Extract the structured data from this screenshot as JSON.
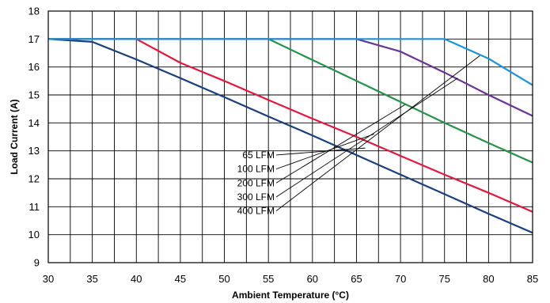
{
  "chart_data": {
    "type": "line",
    "title": "",
    "xlabel": "Ambient Temperature (°C)",
    "ylabel": "Load Current (A)",
    "xlim": [
      30,
      85
    ],
    "ylim": [
      9,
      18
    ],
    "xticks": [
      30,
      35,
      40,
      45,
      50,
      55,
      60,
      65,
      70,
      75,
      80,
      85
    ],
    "yticks": [
      9,
      10,
      11,
      12,
      13,
      14,
      15,
      16,
      17,
      18
    ],
    "grid": true,
    "legend": "none",
    "series": [
      {
        "name": "65 LFM",
        "color": "#1b3f7a",
        "points": [
          [
            30,
            17.0
          ],
          [
            35,
            16.9
          ],
          [
            40,
            16.27
          ],
          [
            45,
            15.6
          ],
          [
            50,
            14.92
          ],
          [
            55,
            14.23
          ],
          [
            60,
            13.55
          ],
          [
            65,
            12.85
          ],
          [
            70,
            12.15
          ],
          [
            75,
            11.45
          ],
          [
            80,
            10.75
          ],
          [
            85,
            10.07
          ]
        ]
      },
      {
        "name": "100 LFM",
        "color": "#e0193f",
        "points": [
          [
            30,
            17.0
          ],
          [
            40,
            17.0
          ],
          [
            45,
            16.15
          ],
          [
            50,
            15.5
          ],
          [
            55,
            14.82
          ],
          [
            60,
            14.15
          ],
          [
            65,
            13.5
          ],
          [
            70,
            12.82
          ],
          [
            75,
            12.15
          ],
          [
            80,
            11.5
          ],
          [
            85,
            10.82
          ]
        ]
      },
      {
        "name": "200 LFM",
        "color": "#26924a",
        "points": [
          [
            30,
            17.0
          ],
          [
            55,
            17.0
          ],
          [
            60,
            16.25
          ],
          [
            65,
            15.5
          ],
          [
            70,
            14.75
          ],
          [
            75,
            14.0
          ],
          [
            80,
            13.28
          ],
          [
            85,
            12.58
          ]
        ]
      },
      {
        "name": "300 LFM",
        "color": "#6a3594",
        "points": [
          [
            30,
            17.0
          ],
          [
            65,
            17.0
          ],
          [
            70,
            16.55
          ],
          [
            75,
            15.8
          ],
          [
            80,
            15.0
          ],
          [
            85,
            14.25
          ]
        ]
      },
      {
        "name": "400 LFM",
        "color": "#1d94d4",
        "points": [
          [
            30,
            17.0
          ],
          [
            75,
            17.0
          ],
          [
            80,
            16.3
          ],
          [
            85,
            15.35
          ]
        ]
      }
    ],
    "annotations": [
      "65 LFM",
      "100 LFM",
      "200 LFM",
      "300 LFM",
      "400 LFM"
    ]
  }
}
